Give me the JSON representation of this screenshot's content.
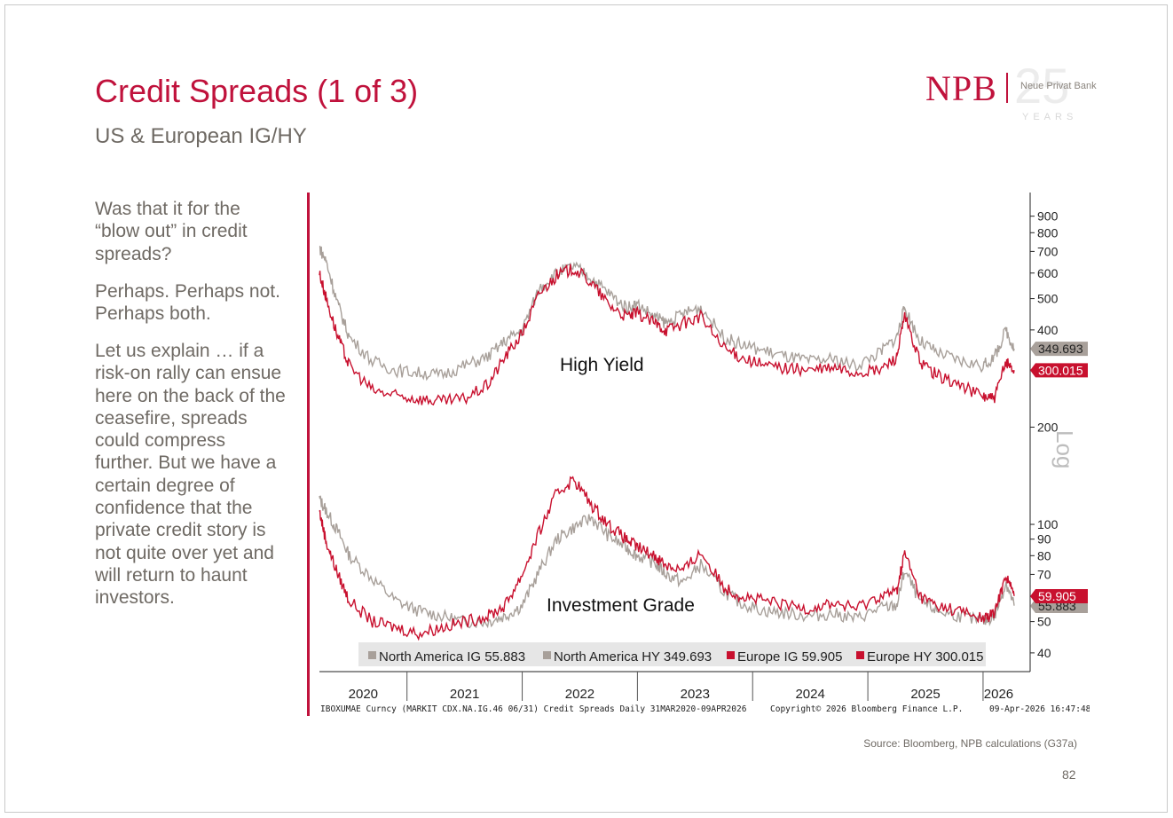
{
  "slide": {
    "title": "Credit Spreads (1 of 3)",
    "subtitle": "US & European IG/HY",
    "logo": {
      "brand": "NPB",
      "anniversary": "25",
      "bank_name": "Neue Privat Bank",
      "years": "YEARS"
    },
    "paragraphs": [
      "Was that it for the “blow out” in credit spreads?",
      "Perhaps. Perhaps not. Perhaps both.",
      "Let us explain … if a risk-on rally can ensue here on the back of the ceasefire, spreads could compress further. But we have a certain degree of confidence that the private credit story is not quite over yet and will return to haunt investors."
    ],
    "source": "Source: Bloomberg, NPB calculations (G37a)",
    "page_number": "82"
  },
  "colors": {
    "brand": "#c0123c",
    "gray_series": "#a8a09a",
    "red_series": "#c8102e",
    "text": "#6f6a64"
  },
  "chart_data": {
    "type": "line",
    "scale": "log",
    "scale_label": "Log",
    "ylim": [
      35,
      1000
    ],
    "y_ticks": [
      40,
      50,
      60,
      70,
      80,
      90,
      100,
      200,
      300,
      400,
      500,
      600,
      700,
      800,
      900
    ],
    "y_tick_labels": [
      "40",
      "50",
      "",
      "70",
      "80",
      "90",
      "100",
      "200",
      "",
      "400",
      "500",
      "600",
      "700",
      "800",
      "900"
    ],
    "x_start": 2020.24,
    "x_end": 2026.27,
    "x_labels": [
      "2020",
      "2021",
      "2022",
      "2023",
      "2024",
      "2025",
      "2026"
    ],
    "annotations": [
      "High Yield",
      "Investment Grade"
    ],
    "series": [
      {
        "name": "North America IG",
        "last": "55.883",
        "legend": "North America IG 55.883",
        "color": "gray",
        "x": [
          2020.24,
          2020.3,
          2020.4,
          2020.5,
          2020.7,
          2020.9,
          2021.1,
          2021.3,
          2021.5,
          2021.7,
          2021.85,
          2022.0,
          2022.15,
          2022.3,
          2022.45,
          2022.6,
          2022.75,
          2022.9,
          2023.0,
          2023.15,
          2023.25,
          2023.4,
          2023.55,
          2023.75,
          2023.9,
          2024.1,
          2024.3,
          2024.5,
          2024.7,
          2024.9,
          2025.1,
          2025.25,
          2025.32,
          2025.45,
          2025.6,
          2025.8,
          2026.0,
          2026.1,
          2026.2,
          2026.27
        ],
        "values": [
          120,
          110,
          95,
          80,
          68,
          58,
          54,
          52,
          50,
          50,
          52,
          56,
          72,
          90,
          98,
          105,
          92,
          85,
          80,
          76,
          70,
          66,
          75,
          62,
          57,
          54,
          53,
          52,
          53,
          51,
          55,
          56,
          72,
          58,
          54,
          52,
          50,
          52,
          66,
          56
        ]
      },
      {
        "name": "North America HY",
        "last": "349.693",
        "legend": "North America HY 349.693",
        "color": "gray",
        "x": [
          2020.24,
          2020.3,
          2020.4,
          2020.5,
          2020.7,
          2020.9,
          2021.1,
          2021.3,
          2021.5,
          2021.7,
          2021.85,
          2022.0,
          2022.15,
          2022.3,
          2022.45,
          2022.6,
          2022.75,
          2022.9,
          2023.0,
          2023.15,
          2023.25,
          2023.4,
          2023.55,
          2023.75,
          2023.9,
          2024.1,
          2024.3,
          2024.5,
          2024.7,
          2024.9,
          2025.1,
          2025.25,
          2025.32,
          2025.45,
          2025.6,
          2025.8,
          2026.0,
          2026.1,
          2026.2,
          2026.27
        ],
        "values": [
          720,
          650,
          480,
          380,
          320,
          300,
          295,
          290,
          310,
          330,
          370,
          400,
          540,
          600,
          630,
          580,
          520,
          470,
          480,
          440,
          420,
          450,
          470,
          380,
          360,
          345,
          330,
          320,
          325,
          310,
          340,
          380,
          470,
          370,
          340,
          320,
          310,
          330,
          400,
          350
        ]
      },
      {
        "name": "Europe IG",
        "last": "59.905",
        "legend": "Europe IG 59.905",
        "color": "red",
        "x": [
          2020.24,
          2020.3,
          2020.4,
          2020.5,
          2020.7,
          2020.9,
          2021.1,
          2021.3,
          2021.5,
          2021.7,
          2021.85,
          2022.0,
          2022.15,
          2022.3,
          2022.45,
          2022.6,
          2022.75,
          2022.9,
          2023.0,
          2023.15,
          2023.25,
          2023.4,
          2023.55,
          2023.75,
          2023.9,
          2024.1,
          2024.3,
          2024.5,
          2024.7,
          2024.9,
          2025.1,
          2025.25,
          2025.32,
          2025.45,
          2025.6,
          2025.8,
          2026.0,
          2026.1,
          2026.2,
          2026.27
        ],
        "values": [
          110,
          88,
          70,
          58,
          50,
          48,
          46,
          48,
          50,
          52,
          56,
          70,
          95,
          125,
          138,
          115,
          100,
          90,
          85,
          80,
          75,
          72,
          82,
          64,
          60,
          58,
          56,
          55,
          57,
          55,
          60,
          62,
          82,
          60,
          56,
          54,
          51,
          53,
          70,
          60
        ]
      },
      {
        "name": "Europe HY",
        "last": "300.015",
        "legend": "Europe HY 300.015",
        "color": "red",
        "x": [
          2020.24,
          2020.3,
          2020.4,
          2020.5,
          2020.7,
          2020.9,
          2021.1,
          2021.3,
          2021.5,
          2021.7,
          2021.85,
          2022.0,
          2022.15,
          2022.3,
          2022.45,
          2022.6,
          2022.75,
          2022.9,
          2023.0,
          2023.15,
          2023.25,
          2023.4,
          2023.55,
          2023.75,
          2023.9,
          2024.1,
          2024.3,
          2024.5,
          2024.7,
          2024.9,
          2025.1,
          2025.25,
          2025.32,
          2025.45,
          2025.6,
          2025.8,
          2026.0,
          2026.1,
          2026.2,
          2026.27
        ],
        "values": [
          600,
          500,
          380,
          310,
          260,
          250,
          245,
          240,
          245,
          270,
          330,
          390,
          520,
          590,
          620,
          560,
          480,
          440,
          450,
          420,
          400,
          420,
          440,
          350,
          330,
          310,
          305,
          300,
          305,
          295,
          300,
          330,
          440,
          320,
          290,
          270,
          250,
          245,
          320,
          300
        ]
      }
    ],
    "footer_left": "IBOXUMAE Curncy (MARKIT CDX.NA.IG.46 06/31) Credit Spreads Daily 31MAR2020-09APR2026",
    "footer_center": "Copyright© 2026 Bloomberg Finance L.P.",
    "footer_right": "09-Apr-2026 16:47:48"
  }
}
